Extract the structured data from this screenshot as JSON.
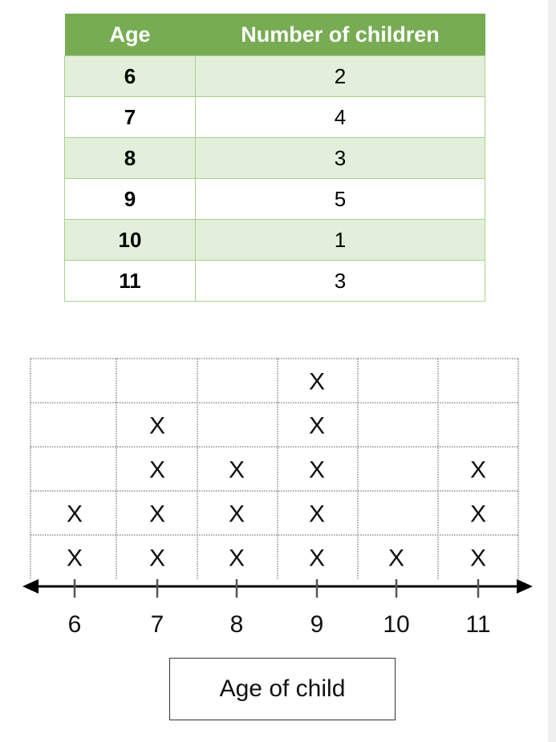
{
  "table": {
    "headers": [
      "Age",
      "Number of children"
    ],
    "rows": [
      [
        "6",
        "2"
      ],
      [
        "7",
        "4"
      ],
      [
        "8",
        "3"
      ],
      [
        "9",
        "5"
      ],
      [
        "10",
        "1"
      ],
      [
        "11",
        "3"
      ]
    ]
  },
  "chart_data": {
    "type": "dot-plot",
    "x_categories": [
      "6",
      "7",
      "8",
      "9",
      "10",
      "11"
    ],
    "values": [
      2,
      4,
      3,
      5,
      1,
      3
    ],
    "marker": "X",
    "xlabel": "Age of child",
    "ylim": [
      0,
      5
    ],
    "grid": true
  },
  "colors": {
    "header": "#77ac53",
    "alt_row": "#e2efda"
  }
}
